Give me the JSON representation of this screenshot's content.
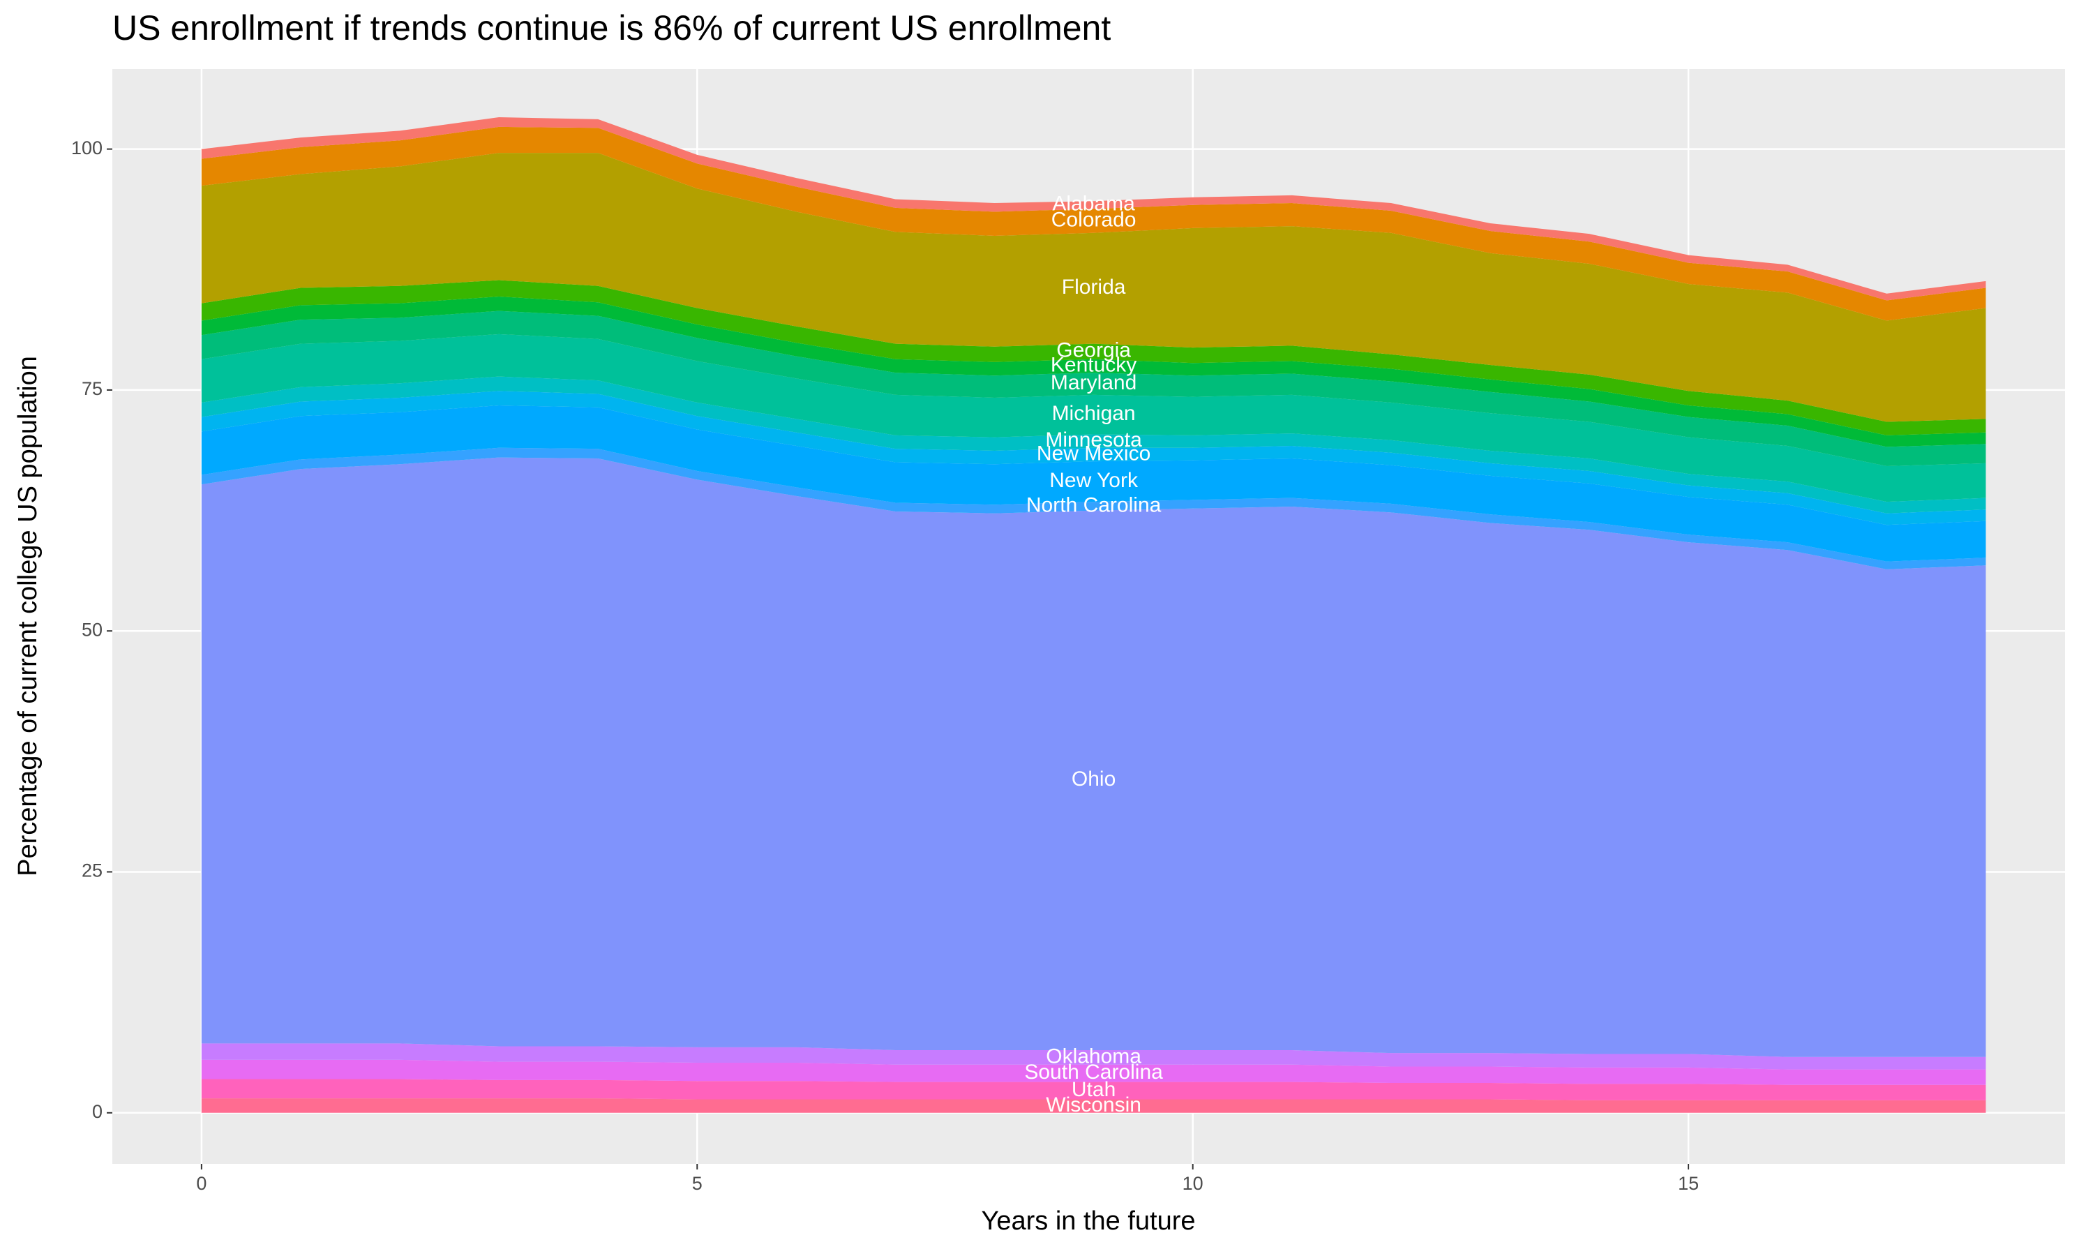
{
  "chart_data": {
    "type": "area",
    "stacked": true,
    "title": "US enrollment if trends continue is 86% of current US enrollment",
    "x_label": "Years in the future",
    "y_label": "Percentage of current college US population",
    "x": [
      0,
      1,
      2,
      3,
      4,
      5,
      6,
      7,
      8,
      9,
      10,
      11,
      12,
      13,
      14,
      15,
      16,
      17,
      18
    ],
    "label_x": 9,
    "xlim": [
      -0.9,
      18.8
    ],
    "ylim": [
      -5.3,
      108.3
    ],
    "xticks": [
      0,
      5,
      10,
      15
    ],
    "yticks": [
      0,
      25,
      50,
      75,
      100
    ],
    "grid": true,
    "series": [
      {
        "name": "Wisconsin",
        "color": "#ff6c91",
        "values": [
          1.5,
          1.5,
          1.5,
          1.5,
          1.5,
          1.4,
          1.4,
          1.4,
          1.4,
          1.4,
          1.4,
          1.4,
          1.4,
          1.4,
          1.3,
          1.3,
          1.3,
          1.3,
          1.3
        ]
      },
      {
        "name": "Utah",
        "color": "#ff62bc",
        "values": [
          2.0,
          2.0,
          2.0,
          1.9,
          1.9,
          1.9,
          1.9,
          1.8,
          1.8,
          1.8,
          1.8,
          1.8,
          1.7,
          1.7,
          1.7,
          1.7,
          1.6,
          1.6,
          1.6
        ]
      },
      {
        "name": "South Carolina",
        "color": "#e76bf3",
        "values": [
          2.0,
          2.0,
          2.0,
          1.9,
          1.9,
          1.9,
          1.9,
          1.8,
          1.8,
          1.8,
          1.8,
          1.8,
          1.7,
          1.7,
          1.7,
          1.7,
          1.6,
          1.6,
          1.6
        ]
      },
      {
        "name": "Oklahoma",
        "color": "#c77cff",
        "values": [
          1.7,
          1.7,
          1.7,
          1.6,
          1.6,
          1.6,
          1.6,
          1.5,
          1.5,
          1.5,
          1.5,
          1.5,
          1.4,
          1.4,
          1.4,
          1.4,
          1.3,
          1.3,
          1.3
        ]
      },
      {
        "name": "Ohio",
        "color": "#8093fc",
        "values": [
          58.0,
          59.6,
          60.1,
          61.1,
          61.0,
          58.9,
          57.2,
          55.9,
          55.7,
          56.0,
          56.2,
          56.4,
          56.1,
          55.0,
          54.4,
          53.1,
          52.6,
          50.6,
          51.0
        ]
      },
      {
        "name": "North Carolina",
        "color": "#35a2ff",
        "values": [
          1.0,
          1.0,
          1.0,
          1.0,
          1.0,
          0.9,
          0.9,
          0.9,
          0.9,
          0.9,
          0.9,
          0.9,
          0.9,
          0.9,
          0.8,
          0.8,
          0.8,
          0.8,
          0.8
        ]
      },
      {
        "name": "New York",
        "color": "#00a9ff",
        "values": [
          4.5,
          4.5,
          4.4,
          4.4,
          4.3,
          4.3,
          4.3,
          4.2,
          4.2,
          4.2,
          4.1,
          4.1,
          4.0,
          4.0,
          4.0,
          3.9,
          3.9,
          3.8,
          3.8
        ]
      },
      {
        "name": "New Mexico",
        "color": "#00b4f0",
        "values": [
          1.5,
          1.5,
          1.5,
          1.5,
          1.4,
          1.4,
          1.4,
          1.4,
          1.4,
          1.4,
          1.3,
          1.3,
          1.3,
          1.3,
          1.3,
          1.2,
          1.2,
          1.2,
          1.2
        ]
      },
      {
        "name": "Minnesota",
        "color": "#00bfc4",
        "values": [
          1.5,
          1.5,
          1.5,
          1.5,
          1.4,
          1.4,
          1.4,
          1.4,
          1.4,
          1.4,
          1.3,
          1.3,
          1.3,
          1.3,
          1.3,
          1.2,
          1.2,
          1.2,
          1.2
        ]
      },
      {
        "name": "Michigan",
        "color": "#00c19a",
        "values": [
          4.5,
          4.5,
          4.4,
          4.4,
          4.3,
          4.3,
          4.2,
          4.2,
          4.1,
          4.1,
          4.0,
          4.0,
          3.9,
          3.9,
          3.8,
          3.8,
          3.7,
          3.7,
          3.6
        ]
      },
      {
        "name": "Maryland",
        "color": "#00bd7a",
        "values": [
          2.5,
          2.5,
          2.4,
          2.4,
          2.4,
          2.4,
          2.3,
          2.3,
          2.3,
          2.3,
          2.2,
          2.2,
          2.2,
          2.2,
          2.1,
          2.1,
          2.1,
          2.0,
          2.0
        ]
      },
      {
        "name": "Kentucky",
        "color": "#00ba38",
        "values": [
          1.5,
          1.5,
          1.5,
          1.5,
          1.4,
          1.4,
          1.4,
          1.4,
          1.4,
          1.4,
          1.3,
          1.3,
          1.3,
          1.3,
          1.3,
          1.2,
          1.2,
          1.2,
          1.2
        ]
      },
      {
        "name": "Georgia",
        "color": "#39b600",
        "values": [
          1.8,
          1.8,
          1.8,
          1.7,
          1.7,
          1.7,
          1.7,
          1.6,
          1.6,
          1.6,
          1.6,
          1.6,
          1.5,
          1.5,
          1.5,
          1.5,
          1.4,
          1.4,
          1.4
        ]
      },
      {
        "name": "Florida",
        "color": "#b3a000",
        "values": [
          12.2,
          11.8,
          12.4,
          13.2,
          13.8,
          12.4,
          11.9,
          11.6,
          11.5,
          11.5,
          12.4,
          12.4,
          12.6,
          11.6,
          11.5,
          11.1,
          11.2,
          10.5,
          11.5
        ]
      },
      {
        "name": "Colorado",
        "color": "#e58700",
        "values": [
          2.8,
          2.8,
          2.7,
          2.7,
          2.6,
          2.6,
          2.6,
          2.5,
          2.5,
          2.5,
          2.4,
          2.4,
          2.3,
          2.3,
          2.3,
          2.2,
          2.2,
          2.1,
          2.1
        ]
      },
      {
        "name": "Alabama",
        "color": "#f8766d",
        "values": [
          1.0,
          1.0,
          1.0,
          1.0,
          0.9,
          0.9,
          0.9,
          0.9,
          0.9,
          0.8,
          0.8,
          0.8,
          0.8,
          0.8,
          0.8,
          0.8,
          0.7,
          0.7,
          0.7
        ]
      }
    ]
  }
}
